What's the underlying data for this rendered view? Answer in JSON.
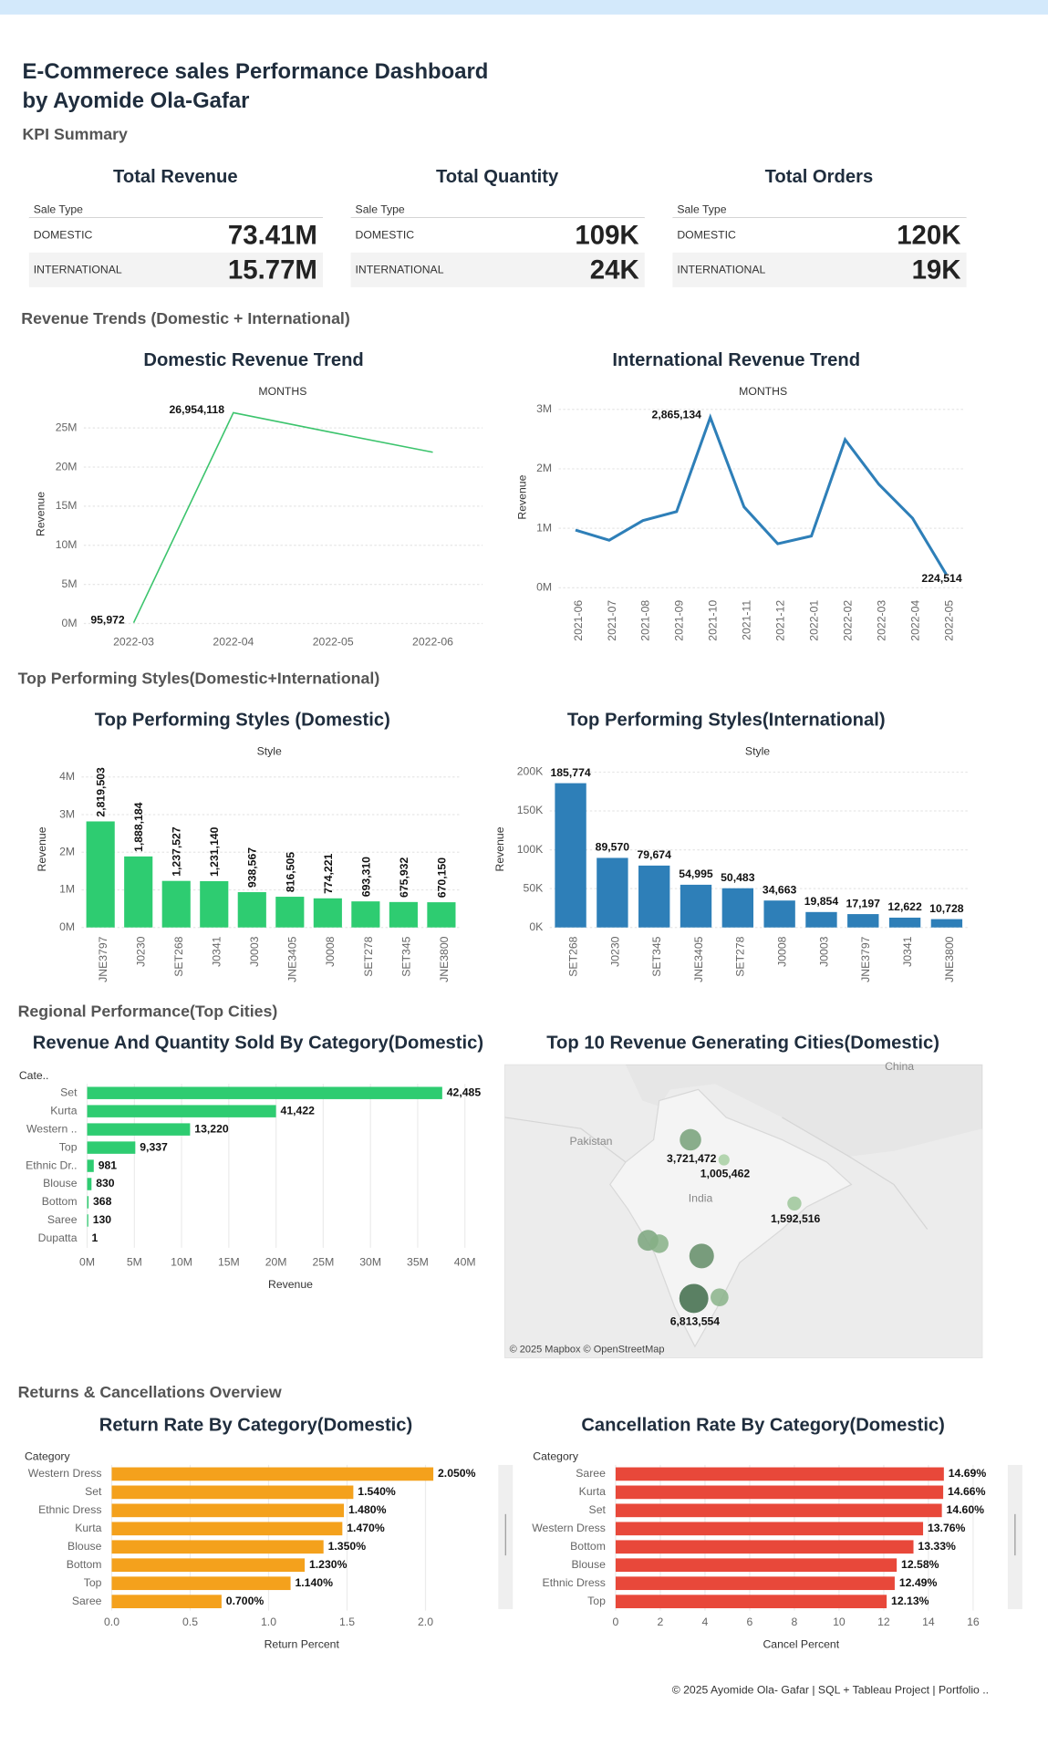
{
  "header": {
    "title": [
      "E-Commerece sales Performance Dashboard",
      "by Ayomide Ola-Gafar"
    ],
    "subtitle": "KPI Summary"
  },
  "kpis": [
    {
      "title": "Total Revenue",
      "column": "Sale Type",
      "rows": [
        [
          "DOMESTIC",
          "73.41M"
        ],
        [
          "INTERNATIONAL",
          "15.77M"
        ]
      ]
    },
    {
      "title": "Total Quantity",
      "column": "Sale Type",
      "rows": [
        [
          "DOMESTIC",
          "109K"
        ],
        [
          "INTERNATIONAL",
          "24K"
        ]
      ]
    },
    {
      "title": "Total Orders",
      "column": "Sale Type",
      "rows": [
        [
          "DOMESTIC",
          "120K"
        ],
        [
          "INTERNATIONAL",
          "19K"
        ]
      ]
    }
  ],
  "sections": [
    "Revenue Trends (Domestic + International)",
    "Top Performing Styles(Domestic+International)",
    "Regional Performance(Top Cities)",
    "Returns & Cancellations Overview"
  ],
  "chart_data": [
    {
      "type": "line",
      "title": "Domestic Revenue Trend",
      "x_label": "MONTHS",
      "y_label": "Revenue",
      "categories": [
        "2022-03",
        "2022-04",
        "2022-05",
        "2022-06"
      ],
      "values": [
        95972,
        26954118,
        24400000,
        21900000
      ],
      "value_labels": [
        "95,972",
        "26,954,118",
        null,
        null
      ],
      "color": "#3cc46d",
      "ylim": [
        0,
        28000000
      ],
      "yticks": [
        {
          "value": 0,
          "label": "0M"
        },
        {
          "value": 5000000,
          "label": "5M"
        },
        {
          "value": 10000000,
          "label": "10M"
        },
        {
          "value": 15000000,
          "label": "15M"
        },
        {
          "value": 20000000,
          "label": "20M"
        },
        {
          "value": 25000000,
          "label": "25M"
        }
      ],
      "grid": true
    },
    {
      "type": "line",
      "title": "International Revenue Trend",
      "x_label": "MONTHS",
      "y_label": "Revenue",
      "categories": [
        "2021-06",
        "2021-07",
        "2021-08",
        "2021-09",
        "2021-10",
        "2021-11",
        "2021-12",
        "2022-01",
        "2022-02",
        "2022-03",
        "2022-04",
        "2022-05"
      ],
      "values": [
        970000,
        800000,
        1130000,
        1280000,
        2865134,
        1360000,
        740000,
        870000,
        2490000,
        1740000,
        1170000,
        224514
      ],
      "value_labels": [
        null,
        null,
        null,
        null,
        "2,865,134",
        null,
        null,
        null,
        null,
        null,
        null,
        "224,514"
      ],
      "color": "#2e7fb8",
      "ylim": [
        0,
        3100000
      ],
      "yticks": [
        {
          "value": 0,
          "label": "0M"
        },
        {
          "value": 1000000,
          "label": "1M"
        },
        {
          "value": 2000000,
          "label": "2M"
        },
        {
          "value": 3000000,
          "label": "3M"
        }
      ],
      "grid": true
    },
    {
      "type": "bar",
      "title": "Top Performing Styles (Domestic)",
      "x_label": "Style",
      "y_label": "Revenue",
      "categories": [
        "JNE3797",
        "J0230",
        "SET268",
        "J0341",
        "J0003",
        "JNE3405",
        "J0008",
        "SET278",
        "SET345",
        "JNE3800"
      ],
      "values": [
        2819503,
        1888184,
        1237527,
        1231140,
        938567,
        816505,
        774221,
        693310,
        675932,
        670150
      ],
      "value_labels": [
        "2,819,503",
        "1,888,184",
        "1,237,527",
        "1,231,140",
        "938,567",
        "816,505",
        "774,221",
        "693,310",
        "675,932",
        "670,150"
      ],
      "color": "#2ecc71",
      "ylim": [
        0,
        4100000
      ],
      "yticks": [
        {
          "value": 0,
          "label": "0M"
        },
        {
          "value": 1000000,
          "label": "1M"
        },
        {
          "value": 2000000,
          "label": "2M"
        },
        {
          "value": 3000000,
          "label": "3M"
        },
        {
          "value": 4000000,
          "label": "4M"
        }
      ],
      "grid": true,
      "label_rotation": "vertical"
    },
    {
      "type": "bar",
      "title": "Top Performing Styles(International)",
      "x_label": "Style",
      "y_label": "Revenue",
      "categories": [
        "SET268",
        "J0230",
        "SET345",
        "JNE3405",
        "SET278",
        "J0008",
        "J0003",
        "JNE3797",
        "J0341",
        "JNE3800"
      ],
      "values": [
        185774,
        89570,
        79674,
        54995,
        50483,
        34663,
        19854,
        17197,
        12622,
        10728
      ],
      "value_labels": [
        "185,774",
        "89,570",
        "79,674",
        "54,995",
        "50,483",
        "34,663",
        "19,854",
        "17,197",
        "12,622",
        "10,728"
      ],
      "color": "#2e7fb8",
      "ylim": [
        0,
        200000
      ],
      "yticks": [
        {
          "value": 0,
          "label": "0K"
        },
        {
          "value": 50000,
          "label": "50K"
        },
        {
          "value": 100000,
          "label": "100K"
        },
        {
          "value": 150000,
          "label": "150K"
        },
        {
          "value": 200000,
          "label": "200K"
        }
      ],
      "grid": true,
      "label_rotation": "horizontal"
    },
    {
      "type": "bar",
      "orientation": "horizontal",
      "title": "Revenue And Quantity Sold By Category(Domestic)",
      "x_label": "Revenue",
      "y_label": "Cate..",
      "categories": [
        "Set",
        "Kurta",
        "Western ..",
        "Top",
        "Ethnic Dr..",
        "Blouse",
        "Bottom",
        "Saree",
        "Dupatta"
      ],
      "series": [
        {
          "color": "#2ecc71",
          "values": [
            37600000,
            20000000,
            10900000,
            5100000,
            700000,
            460000,
            150000,
            120000,
            1000
          ]
        },
        {
          "values": [
            42485,
            41422,
            13220,
            9337,
            981,
            830,
            368,
            130,
            1
          ],
          "value_labels": [
            "42,485",
            "41,422",
            "13,220",
            "9,337",
            "981",
            "830",
            "368",
            "130",
            "1"
          ]
        }
      ],
      "xlim": [
        0,
        42000000
      ],
      "xticks": [
        {
          "value": 0,
          "label": "0M"
        },
        {
          "value": 5000000,
          "label": "5M"
        },
        {
          "value": 10000000,
          "label": "10M"
        },
        {
          "value": 15000000,
          "label": "15M"
        },
        {
          "value": 20000000,
          "label": "20M"
        },
        {
          "value": 25000000,
          "label": "25M"
        },
        {
          "value": 30000000,
          "label": "30M"
        },
        {
          "value": 35000000,
          "label": "35M"
        },
        {
          "value": 40000000,
          "label": "40M"
        }
      ],
      "grid": true
    },
    {
      "type": "map",
      "title": "Top 10 Revenue Generating Cities(Domestic)",
      "places": [
        "Pakistan",
        "India",
        "China"
      ],
      "attribution": "© 2025 Mapbox © OpenStreetMap",
      "values": [
        6813554,
        4900000,
        3721472,
        3500000,
        2800000,
        2600000,
        1592516,
        1005462
      ],
      "value_labels": [
        "6,813,554",
        null,
        "3,721,472",
        null,
        null,
        null,
        "1,592,516",
        "1,005,462"
      ],
      "colors": [
        "#b9e0b1",
        "#3e6b49"
      ]
    },
    {
      "type": "bar",
      "orientation": "horizontal",
      "title": "Return Rate By Category(Domestic)",
      "x_label": "Return Percent",
      "y_label": "Category",
      "categories": [
        "Western Dress",
        "Set",
        "Ethnic Dress",
        "Kurta",
        "Blouse",
        "Bottom",
        "Top",
        "Saree"
      ],
      "values": [
        2.05,
        1.54,
        1.48,
        1.47,
        1.35,
        1.23,
        1.14,
        0.7
      ],
      "value_labels": [
        "2.050%",
        "1.540%",
        "1.480%",
        "1.470%",
        "1.350%",
        "1.230%",
        "1.140%",
        "0.700%"
      ],
      "color": "#f4a11c",
      "xlim": [
        0,
        2.4
      ],
      "xticks": [
        {
          "value": 0,
          "label": "0.0"
        },
        0.5,
        {
          "value": 1,
          "label": "1.0"
        },
        1.5,
        {
          "value": 2,
          "label": "2.0"
        }
      ],
      "grid": true
    },
    {
      "type": "bar",
      "orientation": "horizontal",
      "title": "Cancellation Rate By Category(Domestic)",
      "x_label": "Cancel Percent",
      "y_label": "Category",
      "categories": [
        "Saree",
        "Kurta",
        "Set",
        "Western Dress",
        "Bottom",
        "Blouse",
        "Ethnic Dress",
        "Top"
      ],
      "values": [
        14.69,
        14.66,
        14.6,
        13.76,
        13.33,
        12.58,
        12.49,
        12.13
      ],
      "value_labels": [
        "14.69%",
        "14.66%",
        "14.60%",
        "13.76%",
        "13.33%",
        "12.58%",
        "12.49%",
        "12.13%"
      ],
      "color": "#e8483a",
      "xlim": [
        0,
        17
      ],
      "xticks": [
        0,
        2,
        4,
        6,
        8,
        10,
        12,
        14,
        16
      ],
      "grid": true
    }
  ],
  "footer": "© 2025 Ayomide Ola- Gafar | SQL + Tableau Project | Portfolio .."
}
